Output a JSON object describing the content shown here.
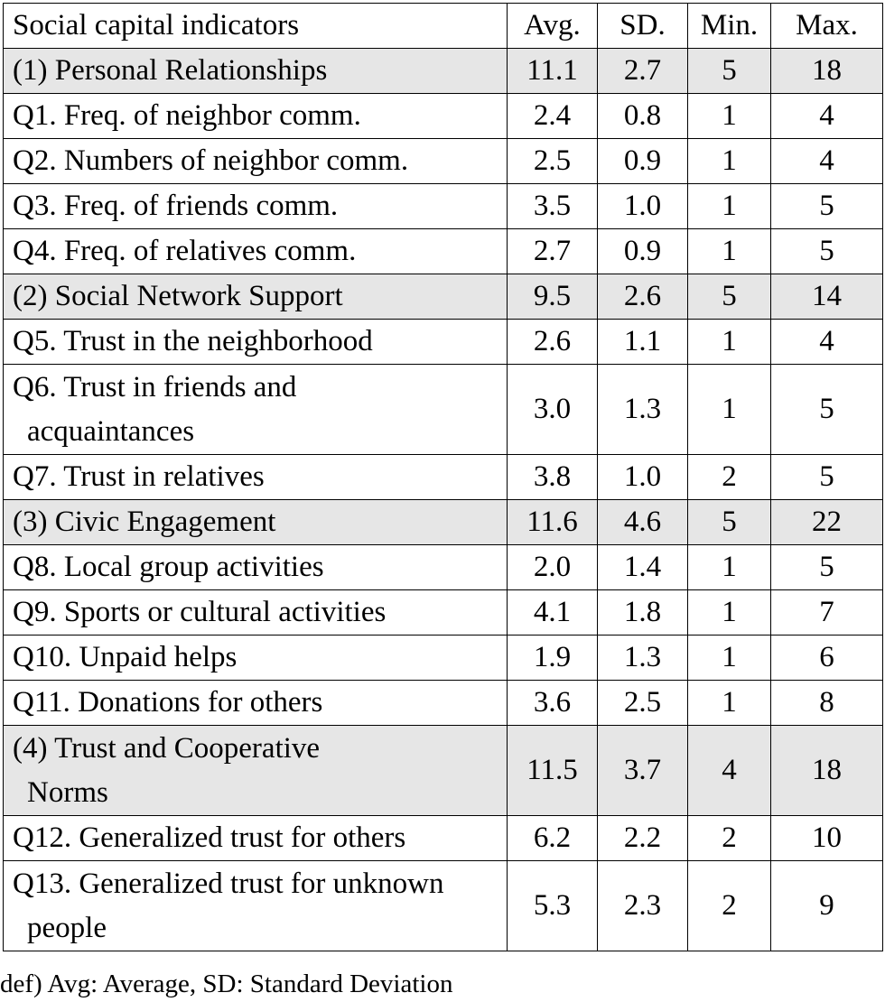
{
  "table": {
    "headers": {
      "label": "Social capital indicators",
      "avg": "Avg.",
      "sd": "SD.",
      "min": "Min.",
      "max": "Max."
    },
    "rows": [
      {
        "label": "(1) Personal Relationships",
        "avg": "11.1",
        "sd": "2.7",
        "min": "5",
        "max": "18"
      },
      {
        "label": "Q1. Freq. of neighbor comm.",
        "avg": "2.4",
        "sd": "0.8",
        "min": "1",
        "max": "4"
      },
      {
        "label": "Q2. Numbers of neighbor comm.",
        "avg": "2.5",
        "sd": "0.9",
        "min": "1",
        "max": "4"
      },
      {
        "label": "Q3. Freq. of friends comm.",
        "avg": "3.5",
        "sd": "1.0",
        "min": "1",
        "max": "5"
      },
      {
        "label": "Q4. Freq. of relatives comm.",
        "avg": "2.7",
        "sd": "0.9",
        "min": "1",
        "max": "5"
      },
      {
        "label": "(2) Social Network Support",
        "avg": "9.5",
        "sd": "2.6",
        "min": "5",
        "max": "14"
      },
      {
        "label": "Q5. Trust in the neighborhood",
        "avg": "2.6",
        "sd": "1.1",
        "min": "1",
        "max": "4"
      },
      {
        "label_line1": "Q6. Trust in friends and",
        "label_line2": "acquaintances",
        "avg": "3.0",
        "sd": "1.3",
        "min": "1",
        "max": "5"
      },
      {
        "label": "Q7. Trust in relatives",
        "avg": "3.8",
        "sd": "1.0",
        "min": "2",
        "max": "5"
      },
      {
        "label": "(3) Civic Engagement",
        "avg": "11.6",
        "sd": "4.6",
        "min": "5",
        "max": "22"
      },
      {
        "label": "Q8. Local group activities",
        "avg": "2.0",
        "sd": "1.4",
        "min": "1",
        "max": "5"
      },
      {
        "label": "Q9. Sports or cultural activities",
        "avg": "4.1",
        "sd": "1.8",
        "min": "1",
        "max": "7"
      },
      {
        "label": "Q10. Unpaid helps",
        "avg": "1.9",
        "sd": "1.3",
        "min": "1",
        "max": "6"
      },
      {
        "label": "Q11. Donations for others",
        "avg": "3.6",
        "sd": "2.5",
        "min": "1",
        "max": "8"
      },
      {
        "label_line1": "(4) Trust and Cooperative",
        "label_line2": "Norms",
        "avg": "11.5",
        "sd": "3.7",
        "min": "4",
        "max": "18"
      },
      {
        "label": "Q12. Generalized trust for others",
        "avg": "6.2",
        "sd": "2.2",
        "min": "2",
        "max": "10"
      },
      {
        "label_line1": "Q13. Generalized trust for unknown",
        "label_line2": "people",
        "avg": "5.3",
        "sd": "2.3",
        "min": "2",
        "max": "9"
      }
    ]
  },
  "note": "def) Avg: Average, SD: Standard Deviation"
}
